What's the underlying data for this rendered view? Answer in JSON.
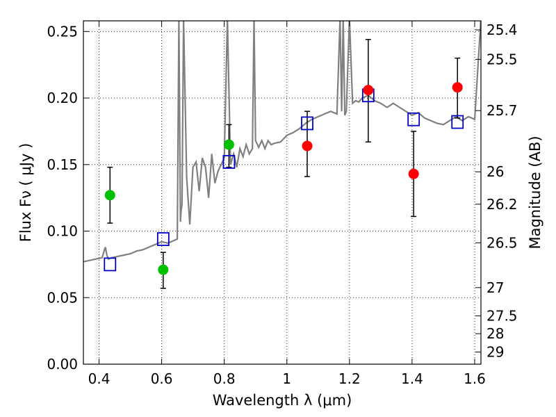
{
  "chart_data": {
    "type": "scatter",
    "xlabel": "Wavelength  λ (μm)",
    "ylabel": "Flux  Fν  ( μJy )",
    "ylabel_right": "Magnitude (AB)",
    "xlim": [
      0.35,
      1.62
    ],
    "ylim": [
      0.0,
      0.258
    ],
    "grid": true,
    "x_ticks": [
      0.4,
      0.6,
      0.8,
      1.0,
      1.2,
      1.4,
      1.6
    ],
    "x_tick_labels": [
      "0.4",
      "0.6",
      "0.8",
      "1",
      "1.2",
      "1.4",
      "1.6"
    ],
    "y_ticks": [
      0.0,
      0.05,
      0.1,
      0.15,
      0.2,
      0.25
    ],
    "y_tick_labels": [
      "0.00",
      "0.05",
      "0.10",
      "0.15",
      "0.20",
      "0.25"
    ],
    "right_ticks": [
      25.4,
      25.5,
      25.7,
      26,
      26.2,
      26.5,
      27,
      27.5,
      28,
      29
    ],
    "right_tick_labels": [
      "25.4",
      "25.5",
      "25.7",
      "26",
      "26.2",
      "26.5",
      "27",
      "27.5",
      "28",
      "29"
    ],
    "colors": {
      "model": "#808080",
      "green": "#00c000",
      "red": "#ff0000",
      "square": "#0000cc",
      "errorbar": "#000000"
    },
    "series": [
      {
        "kind": "line",
        "x": [
          0.35,
          0.37,
          0.39,
          0.41,
          0.42,
          0.425,
          0.43,
          0.44,
          0.46,
          0.48,
          0.5,
          0.52,
          0.54,
          0.56,
          0.58,
          0.6,
          0.62,
          0.64,
          0.65,
          0.655,
          0.66,
          0.662,
          0.665,
          0.67,
          0.68,
          0.69,
          0.7,
          0.71,
          0.72,
          0.73,
          0.74,
          0.75,
          0.76,
          0.77,
          0.78,
          0.79,
          0.8,
          0.81,
          0.82,
          0.83,
          0.84,
          0.85,
          0.86,
          0.87,
          0.88,
          0.89,
          0.895,
          0.9,
          0.91,
          0.92,
          0.93,
          0.94,
          0.95,
          0.96,
          0.98,
          1.0,
          1.02,
          1.04,
          1.06,
          1.08,
          1.1,
          1.12,
          1.14,
          1.16,
          1.17,
          1.175,
          1.18,
          1.185,
          1.19,
          1.2,
          1.21,
          1.22,
          1.23,
          1.24,
          1.26,
          1.28,
          1.3,
          1.32,
          1.34,
          1.36,
          1.38,
          1.4,
          1.42,
          1.44,
          1.46,
          1.48,
          1.5,
          1.52,
          1.54,
          1.56,
          1.58,
          1.6,
          1.62
        ],
        "y": [
          0.077,
          0.078,
          0.079,
          0.08,
          0.088,
          0.082,
          0.079,
          0.08,
          0.081,
          0.082,
          0.083,
          0.085,
          0.086,
          0.088,
          0.09,
          0.092,
          0.091,
          0.093,
          0.094,
          0.26,
          0.107,
          0.115,
          0.12,
          0.26,
          0.14,
          0.105,
          0.148,
          0.152,
          0.13,
          0.155,
          0.148,
          0.125,
          0.158,
          0.136,
          0.145,
          0.15,
          0.155,
          0.26,
          0.15,
          0.158,
          0.148,
          0.162,
          0.156,
          0.165,
          0.158,
          0.162,
          0.26,
          0.168,
          0.163,
          0.168,
          0.162,
          0.168,
          0.165,
          0.166,
          0.167,
          0.172,
          0.174,
          0.177,
          0.181,
          0.184,
          0.186,
          0.188,
          0.19,
          0.188,
          0.26,
          0.19,
          0.26,
          0.187,
          0.19,
          0.26,
          0.196,
          0.198,
          0.197,
          0.2,
          0.202,
          0.198,
          0.196,
          0.193,
          0.196,
          0.193,
          0.19,
          0.187,
          0.189,
          0.185,
          0.183,
          0.181,
          0.18,
          0.183,
          0.186,
          0.183,
          0.186,
          0.184,
          0.26
        ]
      },
      {
        "kind": "green-points",
        "x": [
          0.435,
          0.605,
          0.815
        ],
        "y": [
          0.127,
          0.071,
          0.165
        ],
        "err_low": [
          0.106,
          0.057,
          0.148
        ],
        "err_high": [
          0.148,
          0.084,
          0.18
        ]
      },
      {
        "kind": "red-points",
        "x": [
          1.065,
          1.26,
          1.405,
          1.545
        ],
        "y": [
          0.164,
          0.206,
          0.143,
          0.208
        ],
        "err_low": [
          0.141,
          0.167,
          0.111,
          0.185
        ],
        "err_high": [
          0.19,
          0.244,
          0.175,
          0.23
        ]
      },
      {
        "kind": "model-squares",
        "x": [
          0.435,
          0.605,
          0.815,
          1.065,
          1.26,
          1.405,
          1.545
        ],
        "y": [
          0.075,
          0.094,
          0.152,
          0.181,
          0.202,
          0.184,
          0.182
        ]
      }
    ]
  }
}
